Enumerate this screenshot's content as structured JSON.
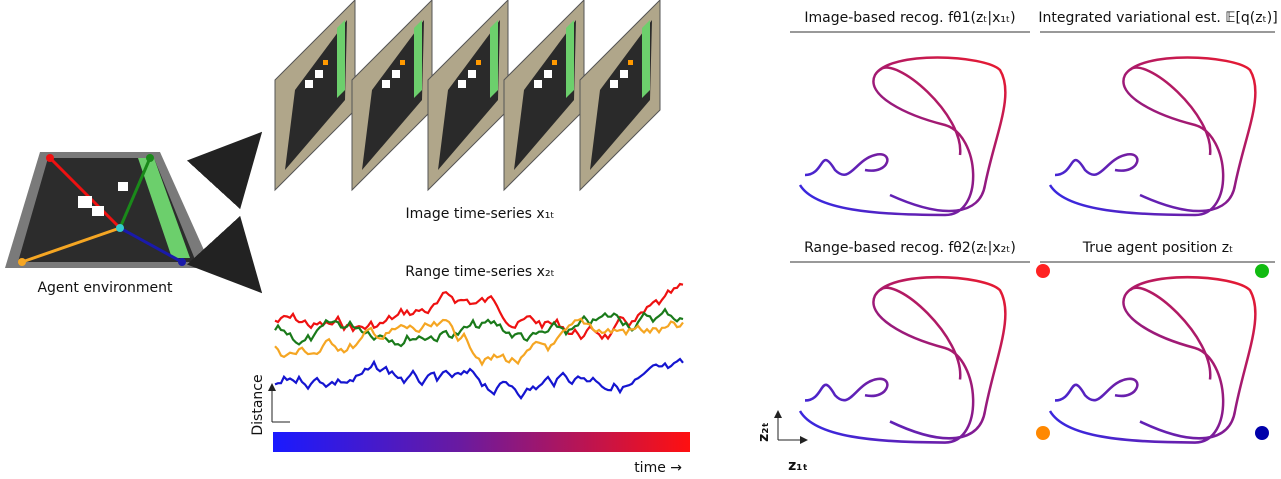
{
  "environment": {
    "label": "Agent environment"
  },
  "image_series": {
    "label": "Image time-series x₁ₜ"
  },
  "range_series": {
    "label": "Range time-series x₂ₜ",
    "y_label": "Distance",
    "x_label": "time →"
  },
  "panels": [
    {
      "title": "Image-based recog. fθ1(zₜ|x₁ₜ)"
    },
    {
      "title": "Integrated variational est. 𝔼[q(zₜ)]"
    },
    {
      "title": "Range-based recog. fθ2(zₜ|x₂ₜ)"
    },
    {
      "title": "True agent position zₜ"
    }
  ],
  "axes": {
    "y": "z₂ₜ",
    "x": "z₁ₜ"
  }
}
